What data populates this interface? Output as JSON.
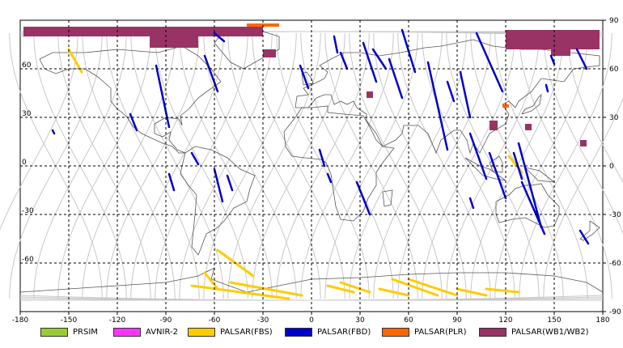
{
  "map": {
    "lon_ticks": [
      "-180",
      "-150",
      "-120",
      "-90",
      "-60",
      "-30",
      "0",
      "30",
      "60",
      "90",
      "120",
      "150",
      "180"
    ],
    "lat_ticks_right": [
      "90",
      "60",
      "30",
      "0",
      "-30",
      "-60",
      "-90"
    ],
    "lat_ticks_left": [
      "60",
      "30",
      "0",
      "-30",
      "-60"
    ],
    "lon_range": [
      -180,
      180
    ],
    "lat_range": [
      -90,
      90
    ],
    "grid": "dashed",
    "land_outline_color": "#555555",
    "orbit_color": "#c8c8c8"
  },
  "legend": [
    {
      "label": "PRSIM",
      "color": "#99cc33"
    },
    {
      "label": "AVNIR-2",
      "color": "#ff33ff"
    },
    {
      "label": "PALSAR(FBS)",
      "color": "#ffcc00"
    },
    {
      "label": "PALSAR(FBD)",
      "color": "#0000cc"
    },
    {
      "label": "PALSAR(PLR)",
      "color": "#ff6600"
    },
    {
      "label": "PALSAR(WB1/WB2)",
      "color": "#993366"
    }
  ],
  "chart_data": {
    "type": "map",
    "fbd_strips": [
      {
        "lon": [
          -96,
          -88
        ],
        "lat": [
          62,
          24
        ]
      },
      {
        "lon": [
          -60,
          -54
        ],
        "lat": [
          82,
          77
        ]
      },
      {
        "lon": [
          -66,
          -58
        ],
        "lat": [
          68,
          46
        ]
      },
      {
        "lon": [
          -112,
          -108
        ],
        "lat": [
          32,
          22
        ]
      },
      {
        "lon": [
          -160,
          -159
        ],
        "lat": [
          22,
          20
        ]
      },
      {
        "lon": [
          -74,
          -70
        ],
        "lat": [
          8,
          1
        ]
      },
      {
        "lon": [
          -60,
          -55
        ],
        "lat": [
          -2,
          -22
        ]
      },
      {
        "lon": [
          -52,
          -49
        ],
        "lat": [
          -6,
          -15
        ]
      },
      {
        "lon": [
          -88,
          -85
        ],
        "lat": [
          -5,
          -15
        ]
      },
      {
        "lon": [
          -7,
          -2
        ],
        "lat": [
          62,
          48
        ]
      },
      {
        "lon": [
          5,
          8
        ],
        "lat": [
          10,
          0
        ]
      },
      {
        "lon": [
          10,
          12
        ],
        "lat": [
          -5,
          -10
        ]
      },
      {
        "lon": [
          14,
          16
        ],
        "lat": [
          80,
          70
        ]
      },
      {
        "lon": [
          18,
          22
        ],
        "lat": [
          70,
          60
        ]
      },
      {
        "lon": [
          28,
          36
        ],
        "lat": [
          -10,
          -30
        ]
      },
      {
        "lon": [
          32,
          40
        ],
        "lat": [
          76,
          52
        ]
      },
      {
        "lon": [
          38,
          46
        ],
        "lat": [
          72,
          60
        ]
      },
      {
        "lon": [
          48,
          56
        ],
        "lat": [
          66,
          42
        ]
      },
      {
        "lon": [
          56,
          64
        ],
        "lat": [
          84,
          58
        ]
      },
      {
        "lon": [
          72,
          84
        ],
        "lat": [
          64,
          10
        ]
      },
      {
        "lon": [
          84,
          88
        ],
        "lat": [
          52,
          40
        ]
      },
      {
        "lon": [
          92,
          98
        ],
        "lat": [
          58,
          30
        ]
      },
      {
        "lon": [
          102,
          118
        ],
        "lat": [
          82,
          46
        ]
      },
      {
        "lon": [
          98,
          108
        ],
        "lat": [
          20,
          -8
        ]
      },
      {
        "lon": [
          110,
          120
        ],
        "lat": [
          8,
          -20
        ]
      },
      {
        "lon": [
          125,
          130
        ],
        "lat": [
          8,
          -8
        ]
      },
      {
        "lon": [
          130,
          144
        ],
        "lat": [
          -10,
          -42
        ]
      },
      {
        "lon": [
          128,
          142
        ],
        "lat": [
          14,
          -38
        ]
      },
      {
        "lon": [
          148,
          150
        ],
        "lat": [
          68,
          63
        ]
      },
      {
        "lon": [
          164,
          170
        ],
        "lat": [
          72,
          60
        ]
      },
      {
        "lon": [
          166,
          171
        ],
        "lat": [
          -40,
          -48
        ]
      },
      {
        "lon": [
          145,
          146
        ],
        "lat": [
          50,
          46
        ]
      },
      {
        "lon": [
          98,
          100
        ],
        "lat": [
          -20,
          -26
        ]
      }
    ],
    "fbs_strips": [
      {
        "lon": [
          -150,
          -142
        ],
        "lat": [
          72,
          58
        ]
      },
      {
        "lon": [
          -58,
          -36
        ],
        "lat": [
          -52,
          -68
        ]
      },
      {
        "lon": [
          -66,
          -58
        ],
        "lat": [
          -66,
          -76
        ]
      },
      {
        "lon": [
          -74,
          -14
        ],
        "lat": [
          -74,
          -82
        ]
      },
      {
        "lon": [
          -50,
          -6
        ],
        "lat": [
          -72,
          -80
        ]
      },
      {
        "lon": [
          10,
          26
        ],
        "lat": [
          -74,
          -78
        ]
      },
      {
        "lon": [
          18,
          36
        ],
        "lat": [
          -72,
          -78
        ]
      },
      {
        "lon": [
          42,
          60
        ],
        "lat": [
          -76,
          -80
        ]
      },
      {
        "lon": [
          50,
          78
        ],
        "lat": [
          -70,
          -80
        ]
      },
      {
        "lon": [
          60,
          90
        ],
        "lat": [
          -70,
          -80
        ]
      },
      {
        "lon": [
          90,
          108
        ],
        "lat": [
          -76,
          -80
        ]
      },
      {
        "lon": [
          108,
          128
        ],
        "lat": [
          -76,
          -78
        ]
      },
      {
        "lon": [
          122,
          130
        ],
        "lat": [
          6,
          -4
        ]
      }
    ],
    "wb_regions": [
      {
        "lon": [
          -178,
          -30
        ],
        "lat": [
          86,
          80
        ]
      },
      {
        "lon": [
          -100,
          -70
        ],
        "lat": [
          82,
          73
        ]
      },
      {
        "lon": [
          -30,
          -22
        ],
        "lat": [
          72,
          67
        ]
      },
      {
        "lon": [
          34,
          38
        ],
        "lat": [
          46,
          42
        ]
      },
      {
        "lon": [
          110,
          115
        ],
        "lat": [
          28,
          22
        ]
      },
      {
        "lon": [
          132,
          136
        ],
        "lat": [
          26,
          22
        ]
      },
      {
        "lon": [
          166,
          170
        ],
        "lat": [
          16,
          12
        ]
      },
      {
        "lon": [
          120,
          178
        ],
        "lat": [
          84,
          72
        ]
      },
      {
        "lon": [
          148,
          160
        ],
        "lat": [
          78,
          68
        ]
      }
    ],
    "plr_regions": [
      {
        "lon": [
          -40,
          -20
        ],
        "lat": [
          88,
          86
        ]
      },
      {
        "lon": [
          118,
          122
        ],
        "lat": [
          38,
          36
        ]
      }
    ]
  }
}
